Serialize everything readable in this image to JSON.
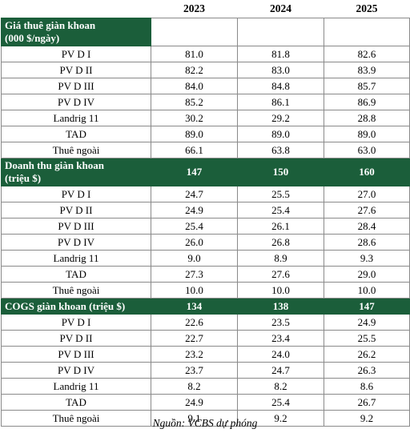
{
  "headers": [
    "",
    "2023",
    "2024",
    "2025"
  ],
  "sections": [
    {
      "title_line1": "Giá thuê giàn khoan",
      "title_line2": "(000 $/ngày)",
      "totals": [
        "",
        "",
        ""
      ],
      "rows": [
        {
          "label": "PV D I",
          "values": [
            "81.0",
            "81.8",
            "82.6"
          ]
        },
        {
          "label": "PV D II",
          "values": [
            "82.2",
            "83.0",
            "83.9"
          ]
        },
        {
          "label": "PV D III",
          "values": [
            "84.0",
            "84.8",
            "85.7"
          ]
        },
        {
          "label": "PV D IV",
          "values": [
            "85.2",
            "86.1",
            "86.9"
          ]
        },
        {
          "label": "Landrig 11",
          "values": [
            "30.2",
            "29.2",
            "28.8"
          ]
        },
        {
          "label": "TAD",
          "values": [
            "89.0",
            "89.0",
            "89.0"
          ]
        },
        {
          "label": "Thuê ngoài",
          "values": [
            "66.1",
            "63.8",
            "63.0"
          ]
        }
      ]
    },
    {
      "title_line1": "Doanh thu giàn khoan",
      "title_line2": "(triệu $)",
      "totals": [
        "147",
        "150",
        "160"
      ],
      "rows": [
        {
          "label": "PV D I",
          "values": [
            "24.7",
            "25.5",
            "27.0"
          ]
        },
        {
          "label": "PV D II",
          "values": [
            "24.9",
            "25.4",
            "27.6"
          ]
        },
        {
          "label": "PV D III",
          "values": [
            "25.4",
            "26.1",
            "28.4"
          ]
        },
        {
          "label": "PV D IV",
          "values": [
            "26.0",
            "26.8",
            "28.6"
          ]
        },
        {
          "label": "Landrig 11",
          "values": [
            "9.0",
            "8.9",
            "9.3"
          ]
        },
        {
          "label": "TAD",
          "values": [
            "27.3",
            "27.6",
            "29.0"
          ]
        },
        {
          "label": "Thuê ngoài",
          "values": [
            "10.0",
            "10.0",
            "10.0"
          ]
        }
      ]
    },
    {
      "title_line1": "COGS giàn khoan (triệu $)",
      "title_line2": "",
      "totals": [
        "134",
        "138",
        "147"
      ],
      "rows": [
        {
          "label": "PV D I",
          "values": [
            "22.6",
            "23.5",
            "24.9"
          ]
        },
        {
          "label": "PV D II",
          "values": [
            "22.7",
            "23.4",
            "25.5"
          ]
        },
        {
          "label": "PV D III",
          "values": [
            "23.2",
            "24.0",
            "26.2"
          ]
        },
        {
          "label": "PV D IV",
          "values": [
            "23.7",
            "24.7",
            "26.3"
          ]
        },
        {
          "label": "Landrig 11",
          "values": [
            "8.2",
            "8.2",
            "8.6"
          ]
        },
        {
          "label": "TAD",
          "values": [
            "24.9",
            "25.4",
            "26.7"
          ]
        },
        {
          "label": "Thuê ngoài",
          "values": [
            "9.1",
            "9.2",
            "9.2"
          ]
        }
      ]
    }
  ],
  "source": "Nguồn: VCBS dự phóng"
}
